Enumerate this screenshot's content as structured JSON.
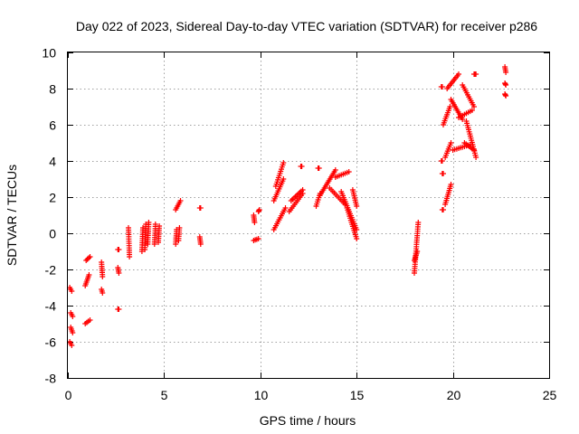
{
  "chart_data": {
    "type": "scatter",
    "title": "Day 022 of 2023, Sidereal Day-to-day VTEC variation (SDTVAR) for receiver p286",
    "xlabel": "GPS time / hours",
    "ylabel": "SDTVAR / TECUs",
    "xlim": [
      0,
      25
    ],
    "ylim": [
      -8,
      10
    ],
    "xticks": [
      0,
      5,
      10,
      15,
      20,
      25
    ],
    "yticks": [
      -8,
      -6,
      -4,
      -2,
      0,
      2,
      4,
      6,
      8,
      10
    ],
    "grid": true,
    "marker": "plus",
    "color": "#ff0000",
    "segments": [
      {
        "x0": 0.1,
        "x1": 0.2,
        "y0": -3.0,
        "y1": -3.2
      },
      {
        "x0": 0.15,
        "x1": 0.25,
        "y0": -4.4,
        "y1": -4.6
      },
      {
        "x0": 0.15,
        "x1": 0.25,
        "y0": -5.2,
        "y1": -5.5
      },
      {
        "x0": 0.1,
        "x1": 0.2,
        "y0": -6.0,
        "y1": -6.2
      },
      {
        "x0": 0.9,
        "x1": 1.1,
        "y0": -2.9,
        "y1": -2.3
      },
      {
        "x0": 0.95,
        "x1": 1.15,
        "y0": -1.5,
        "y1": -1.3
      },
      {
        "x0": 0.9,
        "x1": 1.15,
        "y0": -5.0,
        "y1": -4.8
      },
      {
        "x0": 1.75,
        "x1": 1.8,
        "y0": -1.6,
        "y1": -2.4
      },
      {
        "x0": 1.75,
        "x1": 1.8,
        "y0": -3.1,
        "y1": -3.3
      },
      {
        "x0": 2.6,
        "x1": 2.65,
        "y0": -0.9,
        "y1": -0.9
      },
      {
        "x0": 2.6,
        "x1": 2.65,
        "y0": -1.9,
        "y1": -2.2
      },
      {
        "x0": 2.6,
        "x1": 2.65,
        "y0": -4.2,
        "y1": -4.2
      },
      {
        "x0": 3.15,
        "x1": 3.2,
        "y0": 0.3,
        "y1": -1.3
      },
      {
        "x0": 3.85,
        "x1": 3.9,
        "y0": -1.0,
        "y1": 0.3
      },
      {
        "x0": 4.0,
        "x1": 4.05,
        "y0": -0.9,
        "y1": 0.5
      },
      {
        "x0": 4.15,
        "x1": 4.2,
        "y0": -0.6,
        "y1": 0.6
      },
      {
        "x0": 4.5,
        "x1": 4.55,
        "y0": -0.6,
        "y1": 0.5
      },
      {
        "x0": 4.7,
        "x1": 4.75,
        "y0": -0.5,
        "y1": 0.4
      },
      {
        "x0": 5.6,
        "x1": 5.65,
        "y0": -0.6,
        "y1": 0.2
      },
      {
        "x0": 5.75,
        "x1": 5.8,
        "y0": -0.4,
        "y1": 0.3
      },
      {
        "x0": 5.6,
        "x1": 5.85,
        "y0": 1.3,
        "y1": 1.8
      },
      {
        "x0": 6.85,
        "x1": 6.9,
        "y0": 1.4,
        "y1": 1.4
      },
      {
        "x0": 6.85,
        "x1": 6.9,
        "y0": -0.2,
        "y1": -0.6
      },
      {
        "x0": 9.65,
        "x1": 9.7,
        "y0": 1.0,
        "y1": 0.6
      },
      {
        "x0": 9.65,
        "x1": 9.9,
        "y0": -0.4,
        "y1": -0.3
      },
      {
        "x0": 9.9,
        "x1": 9.95,
        "y0": 1.2,
        "y1": 1.3
      },
      {
        "x0": 10.7,
        "x1": 11.3,
        "y0": 0.2,
        "y1": 1.4
      },
      {
        "x0": 10.7,
        "x1": 11.2,
        "y0": 1.8,
        "y1": 3.0
      },
      {
        "x0": 10.8,
        "x1": 11.2,
        "y0": 2.6,
        "y1": 3.9
      },
      {
        "x0": 11.5,
        "x1": 12.2,
        "y0": 1.2,
        "y1": 2.2
      },
      {
        "x0": 11.6,
        "x1": 12.2,
        "y0": 1.8,
        "y1": 2.4
      },
      {
        "x0": 12.1,
        "x1": 12.15,
        "y0": 3.7,
        "y1": 3.7
      },
      {
        "x0": 13.0,
        "x1": 13.05,
        "y0": 3.6,
        "y1": 3.6
      },
      {
        "x0": 12.9,
        "x1": 13.1,
        "y0": 1.5,
        "y1": 2.2
      },
      {
        "x0": 13.1,
        "x1": 13.9,
        "y0": 2.1,
        "y1": 3.5
      },
      {
        "x0": 13.9,
        "x1": 14.6,
        "y0": 3.1,
        "y1": 3.4
      },
      {
        "x0": 13.6,
        "x1": 14.4,
        "y0": 2.5,
        "y1": 1.6
      },
      {
        "x0": 14.2,
        "x1": 15.0,
        "y0": 2.3,
        "y1": 0.2
      },
      {
        "x0": 14.5,
        "x1": 15.0,
        "y0": 1.4,
        "y1": -0.3
      },
      {
        "x0": 14.8,
        "x1": 15.0,
        "y0": 2.4,
        "y1": 1.5
      },
      {
        "x0": 18.0,
        "x1": 18.2,
        "y0": -2.2,
        "y1": 0.6
      },
      {
        "x0": 18.0,
        "x1": 18.15,
        "y0": -1.5,
        "y1": -1.0
      },
      {
        "x0": 19.4,
        "x1": 19.45,
        "y0": 8.1,
        "y1": 8.1
      },
      {
        "x0": 19.4,
        "x1": 19.45,
        "y0": 4.0,
        "y1": 4.0
      },
      {
        "x0": 19.45,
        "x1": 19.5,
        "y0": 3.3,
        "y1": 3.3
      },
      {
        "x0": 19.45,
        "x1": 19.5,
        "y0": 1.3,
        "y1": 1.3
      },
      {
        "x0": 19.6,
        "x1": 19.9,
        "y0": 1.6,
        "y1": 2.7
      },
      {
        "x0": 19.5,
        "x1": 19.85,
        "y0": 6.0,
        "y1": 7.0
      },
      {
        "x0": 19.6,
        "x1": 19.9,
        "y0": 4.2,
        "y1": 5.0
      },
      {
        "x0": 19.7,
        "x1": 20.3,
        "y0": 8.0,
        "y1": 8.8
      },
      {
        "x0": 19.9,
        "x1": 20.5,
        "y0": 7.4,
        "y1": 6.3
      },
      {
        "x0": 20.0,
        "x1": 20.9,
        "y0": 4.6,
        "y1": 4.9
      },
      {
        "x0": 20.3,
        "x1": 21.0,
        "y0": 6.4,
        "y1": 6.8
      },
      {
        "x0": 20.5,
        "x1": 21.1,
        "y0": 8.2,
        "y1": 7.0
      },
      {
        "x0": 20.7,
        "x1": 21.2,
        "y0": 6.2,
        "y1": 4.2
      },
      {
        "x0": 20.6,
        "x1": 21.1,
        "y0": 5.0,
        "y1": 4.6
      },
      {
        "x0": 21.1,
        "x1": 21.2,
        "y0": 8.8,
        "y1": 8.8
      },
      {
        "x0": 22.7,
        "x1": 22.75,
        "y0": 9.2,
        "y1": 8.9
      },
      {
        "x0": 22.7,
        "x1": 22.75,
        "y0": 8.3,
        "y1": 8.2
      },
      {
        "x0": 22.7,
        "x1": 22.75,
        "y0": 7.7,
        "y1": 7.6
      }
    ]
  }
}
